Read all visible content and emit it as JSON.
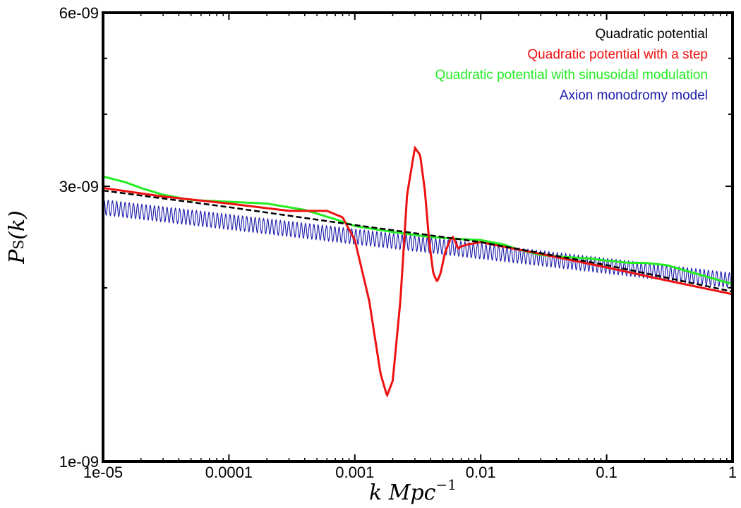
{
  "chart_data": {
    "type": "line",
    "xlabel": "k Mpc",
    "xlabel_superscript": "−1",
    "ylabel": "P",
    "ylabel_subscript": "S",
    "ylabel_suffix": "(k)",
    "xscale": "log",
    "yscale": "log",
    "xlim": [
      1e-05,
      1
    ],
    "ylim": [
      1e-09,
      6e-09
    ],
    "xticks": [
      {
        "value": 1e-05,
        "label": "1e-05"
      },
      {
        "value": 0.0001,
        "label": "0.0001"
      },
      {
        "value": 0.001,
        "label": "0.001"
      },
      {
        "value": 0.01,
        "label": "0.01"
      },
      {
        "value": 0.1,
        "label": "0.1"
      },
      {
        "value": 1,
        "label": "1"
      }
    ],
    "yticks": [
      {
        "value": 1e-09,
        "label": "1e-09"
      },
      {
        "value": 3e-09,
        "label": "3e-09"
      },
      {
        "value": 6e-09,
        "label": "6e-09"
      }
    ],
    "yminorticks": [
      2e-09,
      4e-09,
      5e-09
    ],
    "legend_position": "top-right",
    "grid": false,
    "series": [
      {
        "name": "Quadratic potential",
        "color": "#000000",
        "style": "dashed",
        "x": [
          1e-05,
          0.0001,
          0.001,
          0.01,
          0.1,
          1
        ],
        "y": [
          2.95e-09,
          2.76e-09,
          2.57e-09,
          2.4e-09,
          2.19e-09,
          1.97e-09
        ]
      },
      {
        "name": "Quadratic potential with a step",
        "color": "#ee1111",
        "style": "solid",
        "x": [
          1e-05,
          3e-05,
          0.0001,
          0.0003,
          0.0006,
          0.0008,
          0.001,
          0.0013,
          0.0016,
          0.0018,
          0.002,
          0.0023,
          0.0026,
          0.003,
          0.0033,
          0.0036,
          0.0039,
          0.0042,
          0.0045,
          0.0048,
          0.0052,
          0.0057,
          0.006,
          0.0063,
          0.0066,
          0.007,
          0.008,
          0.01,
          0.03,
          0.1,
          0.3,
          1
        ],
        "y": [
          2.98e-09,
          2.88e-09,
          2.8e-09,
          2.72e-09,
          2.72e-09,
          2.65e-09,
          2.42e-09,
          1.9e-09,
          1.42e-09,
          1.3e-09,
          1.38e-09,
          1.9e-09,
          2.9e-09,
          3.5e-09,
          3.4e-09,
          2.95e-09,
          2.4e-09,
          2.12e-09,
          2.05e-09,
          2.12e-09,
          2.3e-09,
          2.42e-09,
          2.45e-09,
          2.4e-09,
          2.34e-09,
          2.36e-09,
          2.38e-09,
          2.4e-09,
          2.29e-09,
          2.17e-09,
          2.06e-09,
          1.95e-09
        ]
      },
      {
        "name": "Quadratic potential with sinusoidal modulation",
        "color": "#22ee22",
        "style": "solid",
        "x": [
          1e-05,
          1.5e-05,
          2e-05,
          3e-05,
          5e-05,
          0.0001,
          0.0002,
          0.0004,
          0.0007,
          0.001,
          0.002,
          0.004,
          0.007,
          0.01,
          0.015,
          0.02,
          0.03,
          0.05,
          0.07,
          0.1,
          0.15,
          0.2,
          0.3,
          0.5,
          1
        ],
        "y": [
          3.12e-09,
          3.05e-09,
          2.98e-09,
          2.9e-09,
          2.84e-09,
          2.82e-09,
          2.8e-09,
          2.73e-09,
          2.63e-09,
          2.56e-09,
          2.5e-09,
          2.45e-09,
          2.43e-09,
          2.42e-09,
          2.38e-09,
          2.33e-09,
          2.28e-09,
          2.26e-09,
          2.25e-09,
          2.23e-09,
          2.21e-09,
          2.21e-09,
          2.19e-09,
          2.12e-09,
          2.03e-09
        ]
      },
      {
        "name": "Axion monodromy model",
        "color": "#1a1aaa",
        "style": "solid",
        "x": [
          1e-05,
          1
        ],
        "y": [
          2.76e-09,
          2.06e-09
        ],
        "oscillation_amplitude": 0.06
      }
    ]
  }
}
